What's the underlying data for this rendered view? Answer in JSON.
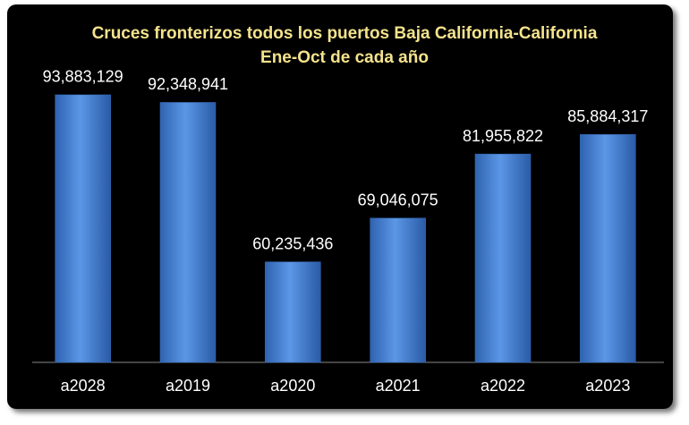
{
  "chart_data": {
    "type": "bar",
    "title": "Cruces fronterizos todos los puertos Baja California-California",
    "subtitle": "Ene-Oct de cada año",
    "categories": [
      "a2028",
      "a2019",
      "a2020",
      "a2021",
      "a2022",
      "a2023"
    ],
    "values": [
      93883129,
      92348941,
      60235436,
      69046075,
      81955822,
      85884317
    ],
    "value_labels": [
      "93,883,129",
      "92,348,941",
      "60,235,436",
      "69,046,075",
      "81,955,822",
      "85,884,317"
    ],
    "color": "#4a86d8",
    "ylim": [
      40000000,
      100000000
    ]
  }
}
